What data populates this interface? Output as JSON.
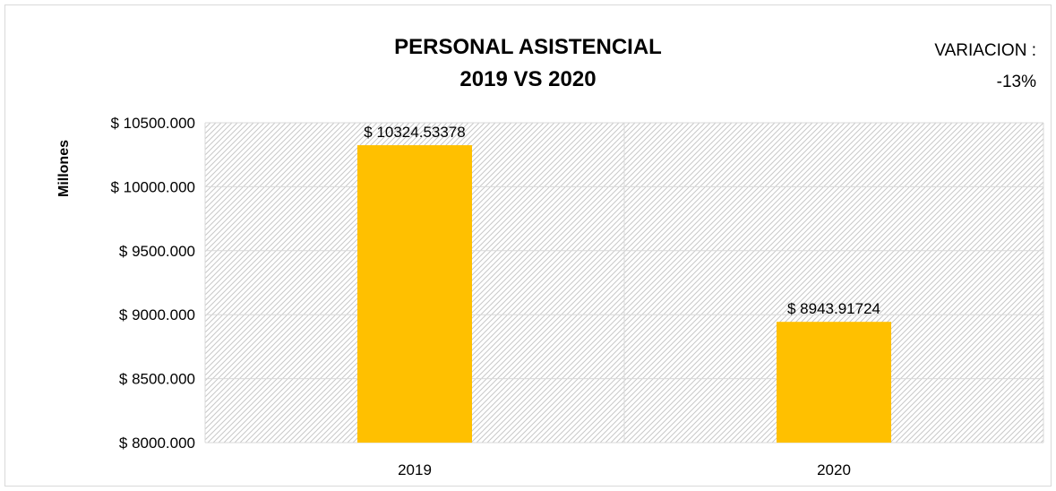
{
  "chart_data": {
    "type": "bar",
    "title_line1": "PERSONAL ASISTENCIAL",
    "title_line2": "2019 VS 2020",
    "annotation": {
      "label": "VARIACION :",
      "value": "-13%"
    },
    "ylabel": "Millones",
    "xlabel": "",
    "categories": [
      "2019",
      "2020"
    ],
    "values": [
      10324.53378,
      8943.91724
    ],
    "data_labels": [
      "$ 10324.53378",
      "$ 8943.91724"
    ],
    "ylim": [
      8000,
      10500
    ],
    "yticks": [
      8000,
      8500,
      9000,
      9500,
      10000,
      10500
    ],
    "ytick_labels": [
      "$ 8000.000",
      "$ 8500.000",
      "$ 9000.000",
      "$ 9500.000",
      "$ 10000.000",
      "$ 10500.000"
    ],
    "grid": true,
    "plot_fill": "hatched-gray",
    "colors": {
      "bar": "#FFC000",
      "grid": "#d9d9d9",
      "hatch": "#c8c8c8"
    }
  }
}
